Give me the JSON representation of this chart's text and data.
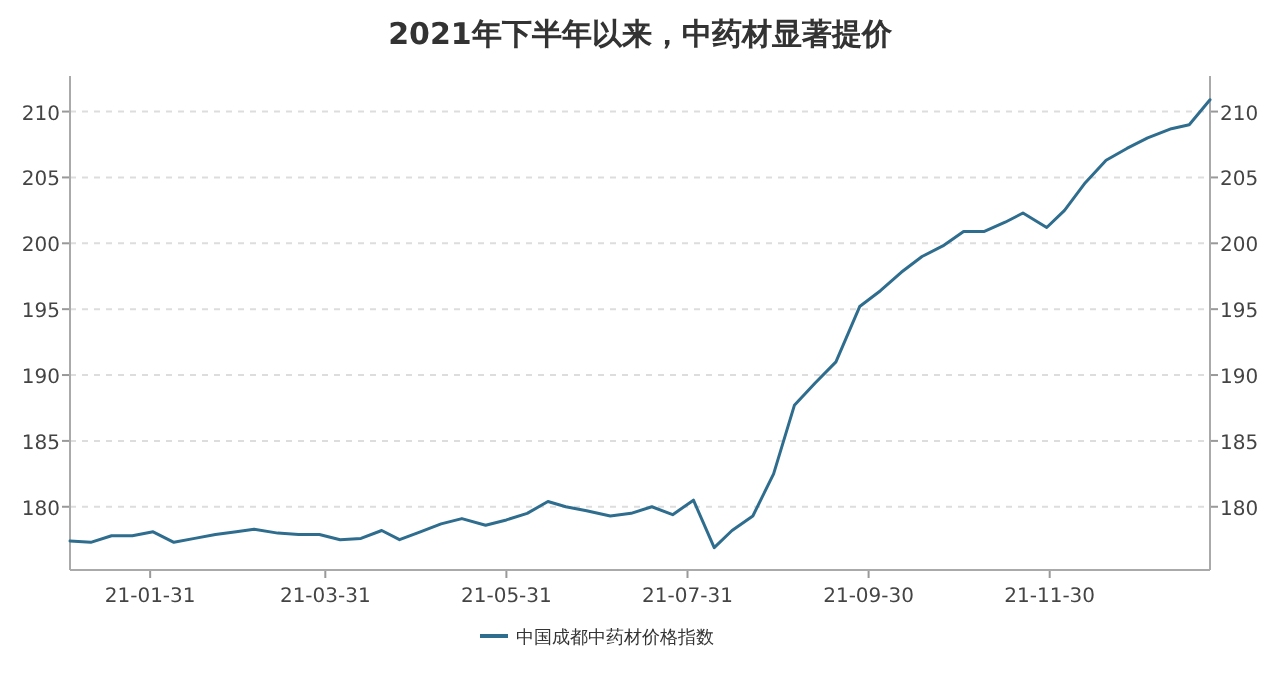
{
  "chart_data": {
    "type": "line",
    "title": "2021年下半年以来，中药材显著提价",
    "legend": "bottom",
    "grid": "y",
    "marker": "none",
    "line_style": "solid",
    "x": [
      "2021-01-04",
      "2021-01-11",
      "2021-01-18",
      "2021-01-25",
      "2021-02-01",
      "2021-02-08",
      "2021-02-15",
      "2021-02-22",
      "2021-03-01",
      "2021-03-07",
      "2021-03-15",
      "2021-03-22",
      "2021-03-29",
      "2021-04-05",
      "2021-04-12",
      "2021-04-19",
      "2021-04-25",
      "2021-05-02",
      "2021-05-09",
      "2021-05-16",
      "2021-05-24",
      "2021-05-31",
      "2021-06-07",
      "2021-06-14",
      "2021-06-20",
      "2021-06-27",
      "2021-07-05",
      "2021-07-12",
      "2021-07-19",
      "2021-07-26",
      "2021-08-02",
      "2021-08-09",
      "2021-08-15",
      "2021-08-22",
      "2021-08-29",
      "2021-09-05",
      "2021-09-12",
      "2021-09-19",
      "2021-09-27",
      "2021-10-04",
      "2021-10-11",
      "2021-10-18",
      "2021-10-25",
      "2021-11-01",
      "2021-11-08",
      "2021-11-15",
      "2021-11-21",
      "2021-11-29",
      "2021-12-05",
      "2021-12-12",
      "2021-12-19",
      "2021-12-26",
      "2022-01-02",
      "2022-01-10",
      "2022-01-16",
      "2022-01-23"
    ],
    "series": [
      {
        "name": "中国成都中药材价格指数",
        "color": "#2e6d8e",
        "values": [
          177.4,
          177.3,
          177.8,
          177.8,
          178.1,
          177.3,
          177.6,
          177.9,
          178.1,
          178.3,
          178.0,
          177.9,
          177.9,
          177.5,
          177.6,
          178.2,
          177.5,
          178.1,
          178.7,
          179.1,
          178.6,
          179.0,
          179.5,
          180.4,
          180.0,
          179.7,
          179.3,
          179.5,
          180.0,
          179.4,
          180.5,
          176.9,
          178.2,
          179.3,
          182.5,
          187.7,
          189.4,
          191.0,
          195.2,
          196.4,
          197.8,
          199.0,
          199.8,
          200.9,
          200.9,
          201.6,
          202.3,
          201.2,
          202.5,
          204.6,
          206.3,
          207.2,
          208.0,
          208.7,
          209.0,
          210.9
        ]
      }
    ],
    "xlim": [
      "2021-01-04",
      "2022-01-23"
    ],
    "xticks": [
      {
        "value": "2021-01-31",
        "label": "21-01-31"
      },
      {
        "value": "2021-03-31",
        "label": "21-03-31"
      },
      {
        "value": "2021-05-31",
        "label": "21-05-31"
      },
      {
        "value": "2021-07-31",
        "label": "21-07-31"
      },
      {
        "value": "2021-09-30",
        "label": "21-09-30"
      },
      {
        "value": "2021-11-30",
        "label": "21-11-30"
      }
    ],
    "ylim": [
      175.2,
      212.7
    ],
    "yticks": [
      180,
      185,
      190,
      195,
      200,
      205,
      210
    ],
    "y2lim": [
      175.2,
      212.7
    ],
    "y2ticks": [
      180,
      185,
      190,
      195,
      200,
      205,
      210
    ]
  }
}
